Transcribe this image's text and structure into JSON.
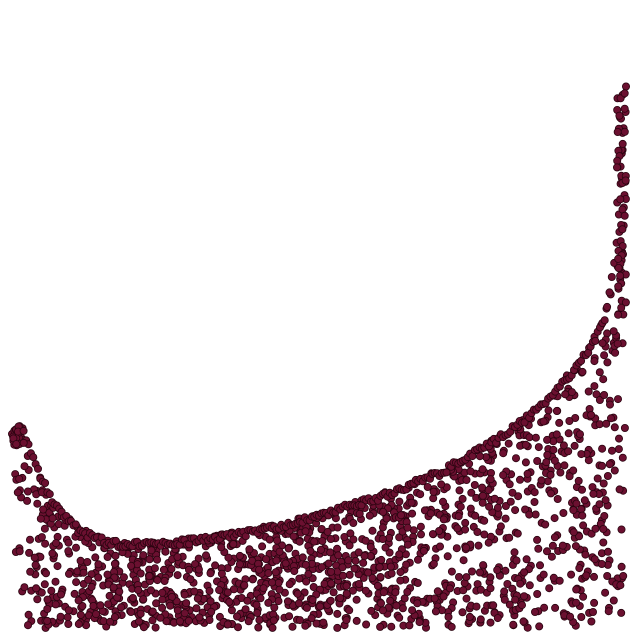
{
  "chart_data": {
    "type": "scatter",
    "title": "",
    "xlabel": "",
    "ylabel": "",
    "xlim": [
      0,
      1
    ],
    "ylim": [
      0,
      1
    ],
    "grid": false,
    "legend": "none",
    "axes_visible": false,
    "point_color": "#6b1030",
    "point_edge_color": "#2a0410",
    "point_count": 1500,
    "envelope": [
      {
        "x": 0.0,
        "y": 0.312
      },
      {
        "x": 0.008,
        "y": 0.325
      },
      {
        "x": 0.025,
        "y": 0.3
      },
      {
        "x": 0.045,
        "y": 0.25
      },
      {
        "x": 0.07,
        "y": 0.2
      },
      {
        "x": 0.11,
        "y": 0.16
      },
      {
        "x": 0.16,
        "y": 0.14
      },
      {
        "x": 0.22,
        "y": 0.138
      },
      {
        "x": 0.3,
        "y": 0.145
      },
      {
        "x": 0.4,
        "y": 0.16
      },
      {
        "x": 0.5,
        "y": 0.185
      },
      {
        "x": 0.6,
        "y": 0.215
      },
      {
        "x": 0.7,
        "y": 0.255
      },
      {
        "x": 0.78,
        "y": 0.3
      },
      {
        "x": 0.85,
        "y": 0.35
      },
      {
        "x": 0.9,
        "y": 0.4
      },
      {
        "x": 0.94,
        "y": 0.45
      },
      {
        "x": 0.965,
        "y": 0.5
      },
      {
        "x": 0.98,
        "y": 0.58
      },
      {
        "x": 0.99,
        "y": 0.68
      },
      {
        "x": 0.997,
        "y": 0.82
      },
      {
        "x": 1.0,
        "y": 0.87
      }
    ]
  }
}
